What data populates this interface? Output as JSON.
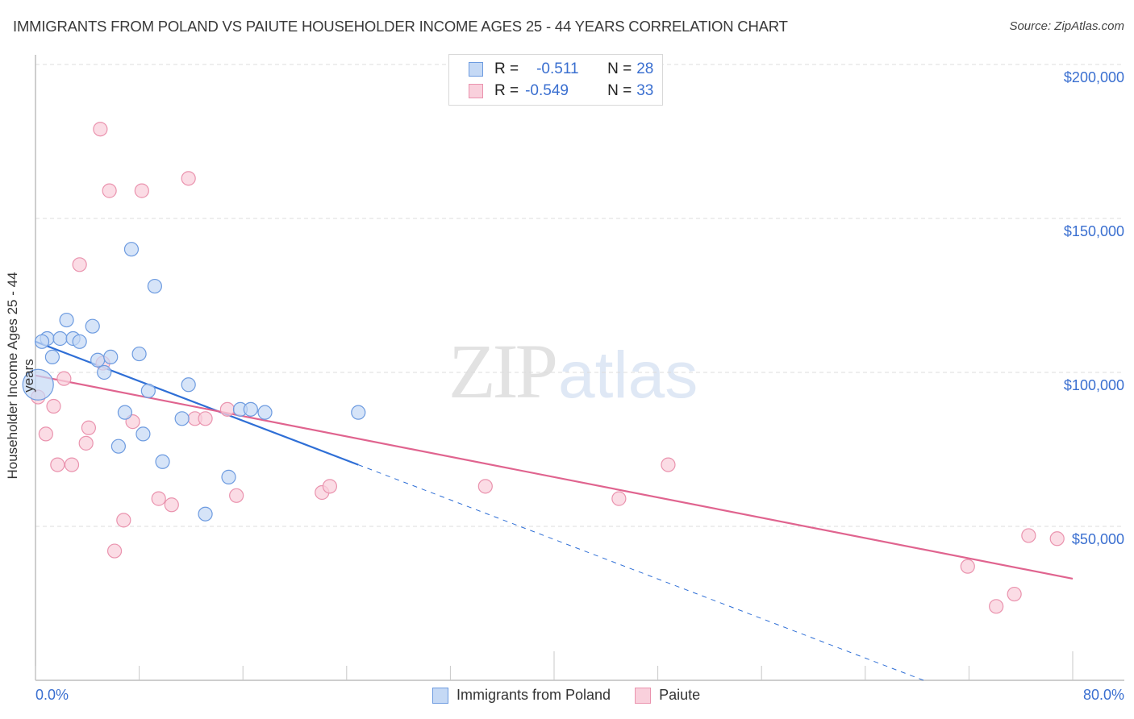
{
  "header": {
    "title": "IMMIGRANTS FROM POLAND VS PAIUTE HOUSEHOLDER INCOME AGES 25 - 44 YEARS CORRELATION CHART",
    "source": "Source: ZipAtlas.com"
  },
  "watermark": {
    "zip": "ZIP",
    "atlas": "atlas"
  },
  "legend": {
    "rows": [
      {
        "r_label": "R =",
        "r_value": "-0.511",
        "n_label": "N =",
        "n_value": "28"
      },
      {
        "r_label": "R =",
        "r_value": "-0.549",
        "n_label": "N =",
        "n_value": "33"
      }
    ]
  },
  "axes": {
    "ylabel": "Householder Income Ages 25 - 44 years",
    "yticks": [
      "$200,000",
      "$150,000",
      "$100,000",
      "$50,000"
    ],
    "xticks": [
      "0.0%",
      "80.0%"
    ]
  },
  "bottom_legend": {
    "items": [
      "Immigrants from Poland",
      "Paiute"
    ]
  },
  "colors": {
    "blue_fill": "#c5d9f5",
    "blue_stroke": "#6d9be0",
    "blue_line": "#2f6fd6",
    "pink_fill": "#f9d0dc",
    "pink_stroke": "#ea93ae",
    "pink_line": "#e0648f",
    "tick_label": "#3a6fd0"
  },
  "chart_data": {
    "type": "scatter",
    "title": "Immigrants from Poland vs Paiute Householder Income Ages 25 - 44 Years Correlation Chart",
    "xlabel": "",
    "ylabel": "Householder Income Ages 25 - 44 years",
    "xlim": [
      0,
      80
    ],
    "ylim": [
      0,
      210000
    ],
    "x_unit": "%",
    "grid": true,
    "legend_position": "bottom",
    "series": [
      {
        "name": "Immigrants from Poland",
        "R": -0.511,
        "N": 28,
        "points": [
          [
            0.2,
            96000
          ],
          [
            0.9,
            111000
          ],
          [
            1.3,
            105000
          ],
          [
            1.9,
            111000
          ],
          [
            2.4,
            117000
          ],
          [
            2.9,
            111000
          ],
          [
            3.4,
            110000
          ],
          [
            4.4,
            115000
          ],
          [
            4.8,
            104000
          ],
          [
            5.3,
            100000
          ],
          [
            5.8,
            105000
          ],
          [
            7.4,
            140000
          ],
          [
            9.2,
            128000
          ],
          [
            8.0,
            106000
          ],
          [
            8.7,
            94000
          ],
          [
            6.9,
            87000
          ],
          [
            6.4,
            76000
          ],
          [
            8.3,
            80000
          ],
          [
            11.8,
            96000
          ],
          [
            11.3,
            85000
          ],
          [
            9.8,
            71000
          ],
          [
            13.1,
            54000
          ],
          [
            14.9,
            66000
          ],
          [
            15.8,
            88000
          ],
          [
            16.6,
            88000
          ],
          [
            17.7,
            87000
          ],
          [
            24.9,
            87000
          ],
          [
            0.5,
            110000
          ]
        ],
        "trend": {
          "x0": 0,
          "y0": 110000,
          "x_solid_end": 24.9,
          "y_solid_end": 70000,
          "x1": 68.5,
          "y1": 0
        }
      },
      {
        "name": "Paiute",
        "R": -0.549,
        "N": 33,
        "points": [
          [
            5.0,
            179000
          ],
          [
            5.7,
            159000
          ],
          [
            8.2,
            159000
          ],
          [
            11.8,
            163000
          ],
          [
            3.4,
            135000
          ],
          [
            0.2,
            92000
          ],
          [
            2.2,
            98000
          ],
          [
            1.4,
            89000
          ],
          [
            0.8,
            80000
          ],
          [
            1.7,
            70000
          ],
          [
            2.8,
            70000
          ],
          [
            3.9,
            77000
          ],
          [
            4.1,
            82000
          ],
          [
            5.2,
            103000
          ],
          [
            7.5,
            84000
          ],
          [
            6.8,
            52000
          ],
          [
            6.1,
            42000
          ],
          [
            9.5,
            59000
          ],
          [
            10.5,
            57000
          ],
          [
            12.3,
            85000
          ],
          [
            13.1,
            85000
          ],
          [
            14.8,
            88000
          ],
          [
            15.5,
            60000
          ],
          [
            22.1,
            61000
          ],
          [
            22.7,
            63000
          ],
          [
            34.7,
            63000
          ],
          [
            45.0,
            59000
          ],
          [
            48.8,
            70000
          ],
          [
            71.9,
            37000
          ],
          [
            74.1,
            24000
          ],
          [
            75.5,
            28000
          ],
          [
            76.6,
            47000
          ],
          [
            78.8,
            46000
          ]
        ],
        "trend": {
          "x0": 0,
          "y0": 99000,
          "x1": 80,
          "y1": 33000
        }
      }
    ]
  }
}
